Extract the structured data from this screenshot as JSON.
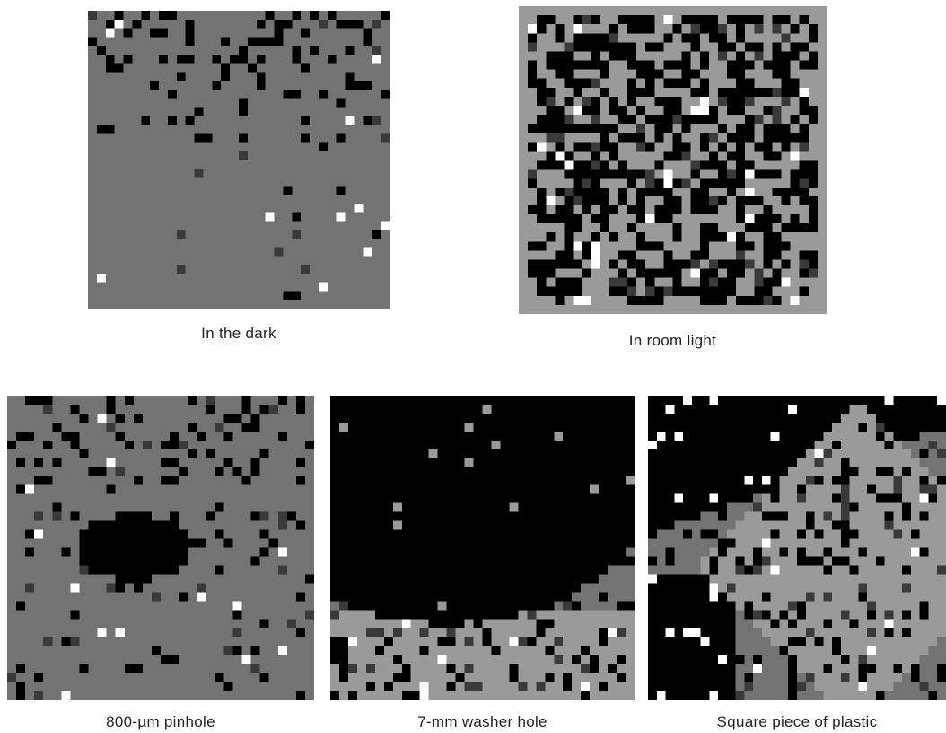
{
  "panels": [
    {
      "id": "dark",
      "caption": "In the dark"
    },
    {
      "id": "room",
      "caption": "In room light"
    },
    {
      "id": "pinhole",
      "caption": "800-µm pinhole"
    },
    {
      "id": "washer",
      "caption": "7-mm washer hole"
    },
    {
      "id": "plastic",
      "caption": "Square piece of plastic"
    }
  ],
  "colors": {
    "gray": "#737373",
    "light_gray": "#9a9a9a",
    "black": "#000000",
    "white": "#ffffff",
    "dark_gray": "#3a3a3a",
    "mid_dark_gray": "#555555"
  }
}
